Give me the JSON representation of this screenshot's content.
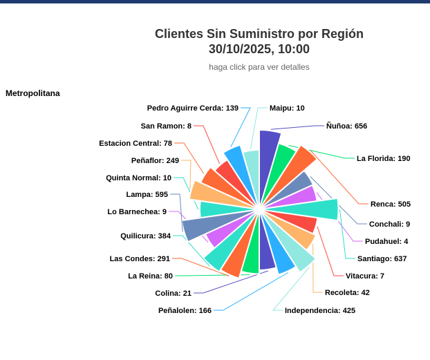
{
  "chart_data": {
    "type": "pie",
    "title_line1": "Clientes Sin Suministro por Región",
    "title_line2": "30/10/2025, 10:00",
    "subtitle": "haga click para ver detalles",
    "region": "Metropolitana",
    "slices": [
      {
        "label": "Ñuñoa",
        "value": 656,
        "color": "#544fc5"
      },
      {
        "label": "La Florida",
        "value": 190,
        "color": "#00e272"
      },
      {
        "label": "Renca",
        "value": 505,
        "color": "#fe6a35"
      },
      {
        "label": "Conchali",
        "value": 9,
        "color": "#6b8abc"
      },
      {
        "label": "Pudahuel",
        "value": 4,
        "color": "#d568fb"
      },
      {
        "label": "Santiago",
        "value": 637,
        "color": "#2ee0ca"
      },
      {
        "label": "Vitacura",
        "value": 7,
        "color": "#fa4b42"
      },
      {
        "label": "Recoleta",
        "value": 42,
        "color": "#feb56a"
      },
      {
        "label": "Independencia",
        "value": 425,
        "color": "#91e8e1"
      },
      {
        "label": "Peñalolen",
        "value": 166,
        "color": "#2caffe"
      },
      {
        "label": "Colina",
        "value": 21,
        "color": "#544fc5"
      },
      {
        "label": "La Reina",
        "value": 80,
        "color": "#00e272"
      },
      {
        "label": "Las Condes",
        "value": 291,
        "color": "#fe6a35"
      },
      {
        "label": "Quilicura",
        "value": 384,
        "color": "#2ee0ca"
      },
      {
        "label": "Lo Barnechea",
        "value": 9,
        "color": "#d568fb"
      },
      {
        "label": "Lampa",
        "value": 595,
        "color": "#6b8abc"
      },
      {
        "label": "Quinta Normal",
        "value": 10,
        "color": "#2ee0ca"
      },
      {
        "label": "Peñaflor",
        "value": 249,
        "color": "#feb56a"
      },
      {
        "label": "Estacion Central",
        "value": 78,
        "color": "#fe6a35"
      },
      {
        "label": "San Ramon",
        "value": 8,
        "color": "#fa4b42"
      },
      {
        "label": "Pedro Aguirre Cerda",
        "value": 139,
        "color": "#2caffe"
      },
      {
        "label": "Maipu",
        "value": 10,
        "color": "#91e8e1"
      }
    ]
  }
}
